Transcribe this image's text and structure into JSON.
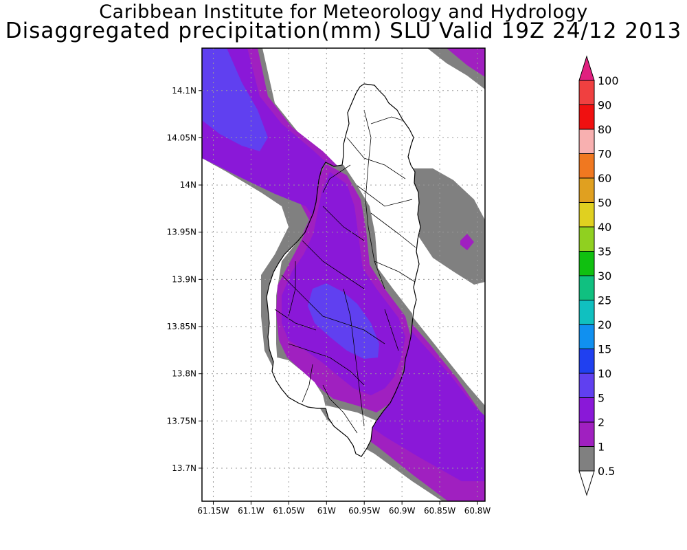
{
  "title": "Caribbean Institute for Meteorology and Hydrology",
  "subtitle": "Disaggregated precipitation(mm) SLU Valid 19Z 24/12 2013",
  "map": {
    "lon_range": [
      -61.165,
      -60.79
    ],
    "lat_range": [
      13.665,
      14.145
    ],
    "lon_ticks": [
      {
        "value": -61.15,
        "label": "61.15W"
      },
      {
        "value": -61.1,
        "label": "61.1W"
      },
      {
        "value": -61.05,
        "label": "61.05W"
      },
      {
        "value": -61.0,
        "label": "61W"
      },
      {
        "value": -60.95,
        "label": "60.95W"
      },
      {
        "value": -60.9,
        "label": "60.9W"
      },
      {
        "value": -60.85,
        "label": "60.85W"
      },
      {
        "value": -60.8,
        "label": "60.8W"
      }
    ],
    "lat_ticks": [
      {
        "value": 13.7,
        "label": "13.7N"
      },
      {
        "value": 13.75,
        "label": "13.75N"
      },
      {
        "value": 13.8,
        "label": "13.8N"
      },
      {
        "value": 13.85,
        "label": "13.85N"
      },
      {
        "value": 13.9,
        "label": "13.9N"
      },
      {
        "value": 13.95,
        "label": "13.95N"
      },
      {
        "value": 14.0,
        "label": "14N"
      },
      {
        "value": 14.05,
        "label": "14.05N"
      },
      {
        "value": 14.1,
        "label": "14.1N"
      }
    ],
    "grid": true,
    "region": "Saint Lucia",
    "precipitation_bands": [
      {
        "range": "0.5-1",
        "color": "#808080"
      },
      {
        "range": "1-2",
        "color": "#a020c0"
      },
      {
        "range": "2-5",
        "color": "#8a18d8"
      },
      {
        "range": "5-10",
        "color": "#6040f0"
      }
    ]
  },
  "legend": {
    "placement": "right",
    "levels": [
      "0.5",
      "1",
      "2",
      "5",
      "10",
      "15",
      "20",
      "25",
      "30",
      "35",
      "40",
      "50",
      "60",
      "70",
      "80",
      "90",
      "100"
    ],
    "colors": [
      "#808080",
      "#a020c0",
      "#8a18d8",
      "#6040f0",
      "#2040f0",
      "#1090f0",
      "#10c0c0",
      "#10c080",
      "#10c010",
      "#90d020",
      "#e0d020",
      "#e0a020",
      "#f07820",
      "#f8b0b0",
      "#f01010",
      "#f04040",
      "#e0207f"
    ],
    "under_color": "#ffffff",
    "over_color": "#e0207f"
  }
}
